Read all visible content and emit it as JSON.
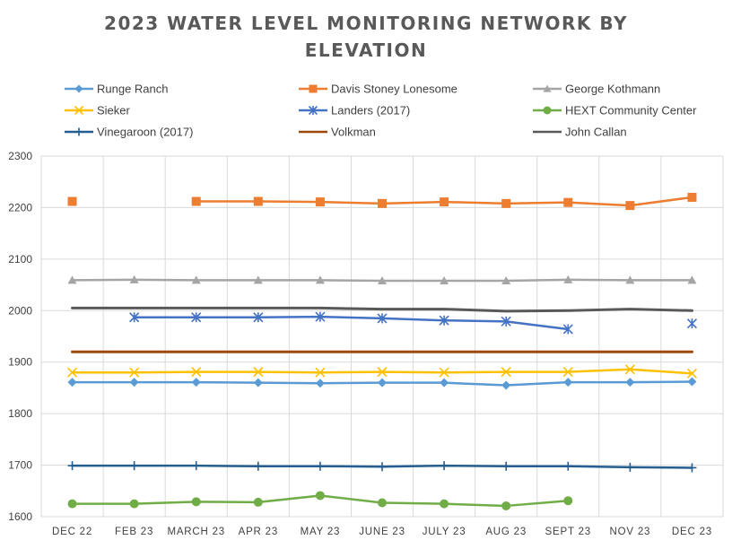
{
  "chart_data": {
    "type": "line",
    "title_lines": [
      "2023 WATER LEVEL MONITORING NETWORK BY",
      "ELEVATION"
    ],
    "xlabel": "",
    "ylabel": "",
    "categories": [
      "DEC 22",
      "FEB 23",
      "MARCH 23",
      "APR 23",
      "MAY 23",
      "JUNE 23",
      "JULY 23",
      "AUG 23",
      "SEPT 23",
      "NOV 23",
      "DEC 23"
    ],
    "ylim": [
      1600,
      2300
    ],
    "yticks": [
      "1600",
      "1700",
      "1800",
      "1900",
      "2000",
      "2100",
      "2200",
      "2300"
    ],
    "grid": true,
    "legend_position": "top",
    "series": [
      {
        "name": "Runge Ranch",
        "color": "#5b9bd5",
        "marker": "diamond",
        "values": [
          1861,
          1861,
          1861,
          1860,
          1859,
          1860,
          1860,
          1855,
          1861,
          1861,
          1862
        ]
      },
      {
        "name": "Davis  Stoney Lonesome",
        "color": "#ed7d31",
        "marker": "square",
        "values": [
          2212,
          null,
          2212,
          2212,
          2211,
          2208,
          2211,
          2208,
          2210,
          2204,
          2220
        ]
      },
      {
        "name": "George Kothmann",
        "color": "#a5a5a5",
        "marker": "triangle",
        "values": [
          2059,
          2060,
          2059,
          2059,
          2059,
          2058,
          2058,
          2058,
          2060,
          2059,
          2059
        ]
      },
      {
        "name": "Sieker",
        "color": "#ffc000",
        "marker": "x",
        "values": [
          1880,
          1880,
          1881,
          1881,
          1880,
          1881,
          1880,
          1881,
          1881,
          1886,
          1878
        ]
      },
      {
        "name": "Landers (2017)",
        "color": "#4472c4",
        "marker": "star",
        "values": [
          null,
          1987,
          1987,
          1987,
          1988,
          1985,
          1981,
          1979,
          1964,
          null,
          1975
        ]
      },
      {
        "name": "HEXT Community Center",
        "color": "#70ad47",
        "marker": "circle",
        "values": [
          1625,
          1625,
          1629,
          1628,
          1641,
          1627,
          1625,
          1621,
          1631,
          null,
          null
        ]
      },
      {
        "name": "Vinegaroon (2017)",
        "color": "#255e91",
        "marker": "plus",
        "values": [
          1699,
          1699,
          1699,
          1698,
          1698,
          1697,
          1699,
          1698,
          1698,
          1696,
          1695
        ]
      },
      {
        "name": "Volkman",
        "color": "#9e480e",
        "marker": "none",
        "values": [
          1920,
          1920,
          1920,
          1920,
          1920,
          1920,
          1920,
          1920,
          1920,
          1920,
          1920
        ]
      },
      {
        "name": "John Callan",
        "color": "#595959",
        "marker": "none",
        "values": [
          2005,
          2005,
          2005,
          2005,
          2005,
          2003,
          2003,
          1999,
          2000,
          2003,
          2000
        ]
      }
    ]
  }
}
